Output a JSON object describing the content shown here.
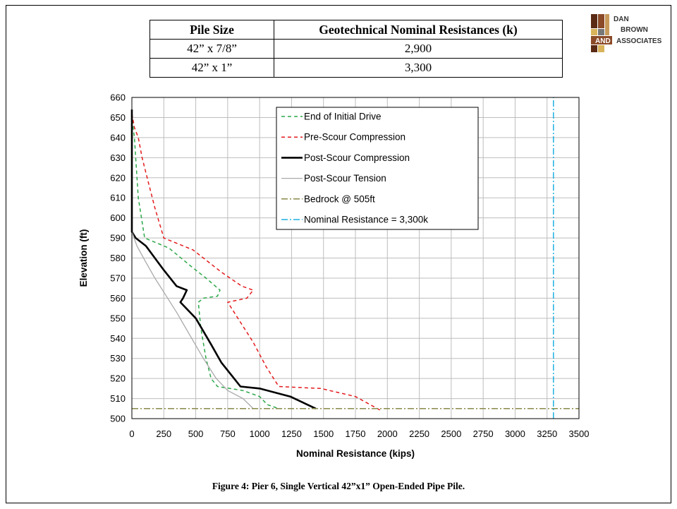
{
  "table": {
    "headers": [
      "Pile Size",
      "Geotechnical Nominal Resistances (k)"
    ],
    "rows": [
      [
        "42” x 7/8”",
        "2,900"
      ],
      [
        "42” x 1”",
        "3,300"
      ]
    ]
  },
  "logo": {
    "lines": [
      "DAN",
      "BROWN",
      "AND",
      "ASSOCIATES"
    ],
    "colors": {
      "dark": "#5b2a14",
      "brown": "#8b4a28",
      "tan": "#c79a5a",
      "gold": "#d8b35a",
      "grey": "#777777"
    }
  },
  "caption": "Figure 4:  Pier 6, Single Vertical 42”x1” Open-Ended Pipe Pile.",
  "chart_data": {
    "type": "line",
    "xlabel": "Nominal Resistance (kips)",
    "ylabel": "Elevation (ft)",
    "xlim": [
      0,
      3500
    ],
    "ylim": [
      500,
      660
    ],
    "xticks": [
      0,
      250,
      500,
      750,
      1000,
      1250,
      1500,
      1750,
      2000,
      2250,
      2500,
      2750,
      3000,
      3250,
      3500
    ],
    "yticks": [
      500,
      510,
      520,
      530,
      540,
      550,
      560,
      570,
      580,
      590,
      600,
      610,
      620,
      630,
      640,
      650,
      660
    ],
    "grid": true,
    "legend_position": "top-center",
    "series": [
      {
        "name": "End of Initial Drive",
        "color": "#2ca84a",
        "style": "dashed",
        "points": [
          [
            0,
            652
          ],
          [
            10,
            645
          ],
          [
            20,
            640
          ],
          [
            30,
            630
          ],
          [
            50,
            610
          ],
          [
            80,
            598
          ],
          [
            100,
            590
          ],
          [
            290,
            585
          ],
          [
            480,
            575
          ],
          [
            580,
            570
          ],
          [
            690,
            564
          ],
          [
            670,
            561
          ],
          [
            560,
            560
          ],
          [
            520,
            558
          ],
          [
            540,
            545
          ],
          [
            580,
            530
          ],
          [
            620,
            520
          ],
          [
            670,
            516
          ],
          [
            870,
            514
          ],
          [
            1000,
            511
          ],
          [
            1060,
            507
          ],
          [
            1150,
            505
          ]
        ]
      },
      {
        "name": "Pre-Scour Compression",
        "color": "#e41a1c",
        "style": "dashed",
        "points": [
          [
            0,
            652
          ],
          [
            20,
            645
          ],
          [
            50,
            640
          ],
          [
            80,
            630
          ],
          [
            120,
            620
          ],
          [
            180,
            605
          ],
          [
            250,
            590
          ],
          [
            480,
            584
          ],
          [
            700,
            573
          ],
          [
            860,
            566
          ],
          [
            950,
            564
          ],
          [
            900,
            560
          ],
          [
            750,
            558
          ],
          [
            850,
            548
          ],
          [
            950,
            538
          ],
          [
            1050,
            526
          ],
          [
            1150,
            516
          ],
          [
            1480,
            515
          ],
          [
            1750,
            511
          ],
          [
            1950,
            504
          ]
        ]
      },
      {
        "name": "Post-Scour Compression",
        "color": "#000000",
        "style": "solid",
        "width": 2.6,
        "points": [
          [
            0,
            654
          ],
          [
            0,
            593
          ],
          [
            30,
            590
          ],
          [
            110,
            586
          ],
          [
            250,
            574
          ],
          [
            350,
            566
          ],
          [
            430,
            564
          ],
          [
            400,
            560
          ],
          [
            380,
            558
          ],
          [
            500,
            550
          ],
          [
            620,
            537
          ],
          [
            700,
            528
          ],
          [
            800,
            520
          ],
          [
            850,
            516
          ],
          [
            1000,
            515
          ],
          [
            1240,
            511
          ],
          [
            1440,
            505
          ]
        ]
      },
      {
        "name": "Post-Scour Tension",
        "color": "#a9a9a9",
        "style": "solid",
        "points": [
          [
            0,
            593
          ],
          [
            40,
            586
          ],
          [
            100,
            579
          ],
          [
            180,
            570
          ],
          [
            260,
            562
          ],
          [
            350,
            553
          ],
          [
            450,
            542
          ],
          [
            560,
            530
          ],
          [
            660,
            520
          ],
          [
            750,
            514
          ],
          [
            870,
            510
          ],
          [
            950,
            505
          ]
        ]
      },
      {
        "name": "Bedrock @ 505ft",
        "color": "#8a8a4a",
        "style": "dashdot",
        "points": [
          [
            0,
            505
          ],
          [
            3500,
            505
          ]
        ]
      },
      {
        "name": "Nominal Resistance = 3,300k",
        "color": "#1fb0e0",
        "style": "dashdot",
        "points": [
          [
            3300,
            500
          ],
          [
            3300,
            660
          ]
        ]
      }
    ]
  }
}
